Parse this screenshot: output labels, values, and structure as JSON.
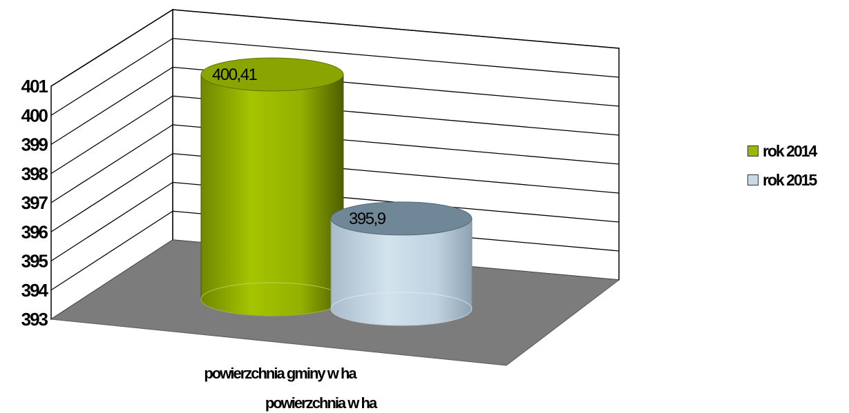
{
  "chart_data": {
    "type": "bar",
    "style": "3d-cylinder",
    "categories": [
      "powierzchnia gminy w ha"
    ],
    "xlabel": "powierzchnia w ha",
    "ylabel": "",
    "ylim": [
      393,
      401
    ],
    "yticks": [
      "393",
      "394",
      "395",
      "396",
      "397",
      "398",
      "399",
      "400",
      "401"
    ],
    "series": [
      {
        "name": "rok 2014",
        "values": [
          400.41
        ],
        "label": "400,41",
        "color": "#9ab800"
      },
      {
        "name": "rok 2015",
        "values": [
          395.9
        ],
        "label": "395,9",
        "color": "#c8dae6"
      }
    ],
    "grid": true,
    "legend_position": "right"
  }
}
